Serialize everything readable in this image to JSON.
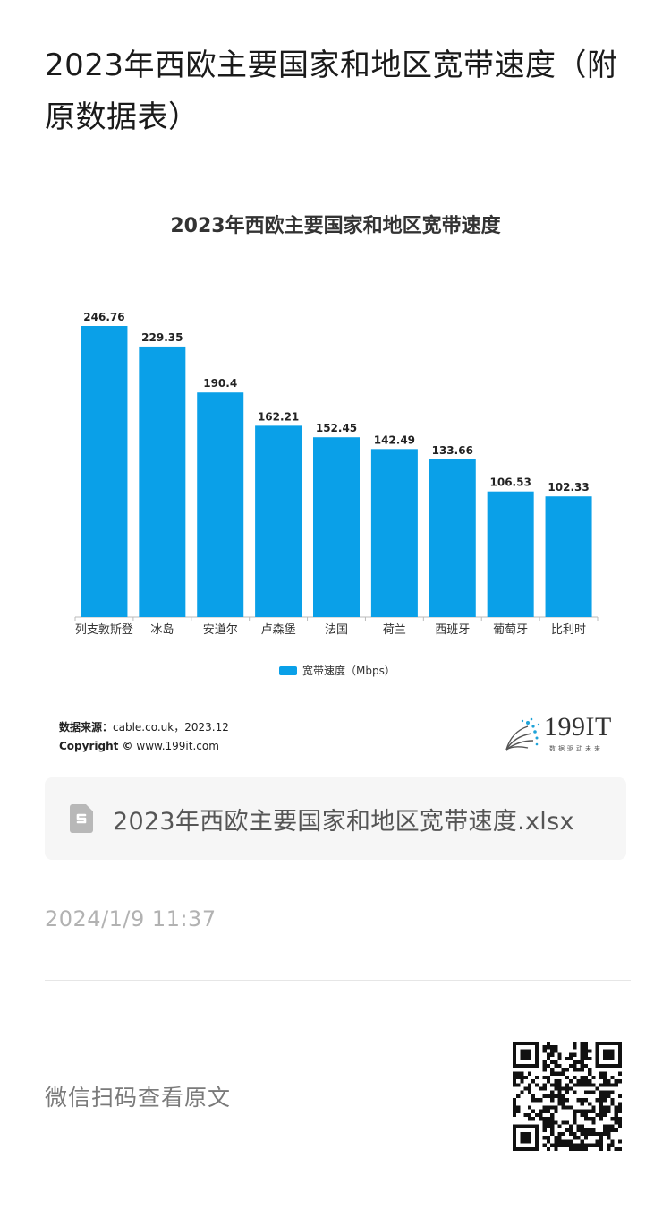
{
  "article": {
    "title": "2023年西欧主要国家和地区宽带速度（附原数据表）"
  },
  "chart_data": {
    "type": "bar",
    "title": "2023年西欧主要国家和地区宽带速度",
    "categories": [
      "列支敦斯登",
      "冰岛",
      "安道尔",
      "卢森堡",
      "法国",
      "荷兰",
      "西班牙",
      "葡萄牙",
      "比利时"
    ],
    "series": [
      {
        "name": "宽带速度（Mbps）",
        "values": [
          246.76,
          229.35,
          190.4,
          162.21,
          152.45,
          142.49,
          133.66,
          106.53,
          102.33
        ]
      }
    ],
    "value_labels": [
      "246.76",
      "229.35",
      "190.4",
      "162.21",
      "152.45",
      "142.49",
      "133.66",
      "106.53",
      "102.33"
    ],
    "bar_color": "#0aa0e8",
    "ylim": [
      0,
      250
    ],
    "legend_position": "bottom",
    "grid": false
  },
  "chart_footer": {
    "source_label": "数据来源：",
    "source_value": "cable.co.uk，2023.12",
    "copyright_label": "Copyright ©",
    "copyright_value": "www.199it.com",
    "logo_text": "199IT",
    "logo_tagline": "数据驱动未来"
  },
  "attachment": {
    "icon": "spreadsheet-file-icon",
    "file_name": "2023年西欧主要国家和地区宽带速度.xlsx"
  },
  "meta": {
    "timestamp": "2024/1/9 11:37"
  },
  "footer": {
    "wechat_hint": "微信扫码查看原文",
    "qr_icon": "qr-code-icon"
  }
}
